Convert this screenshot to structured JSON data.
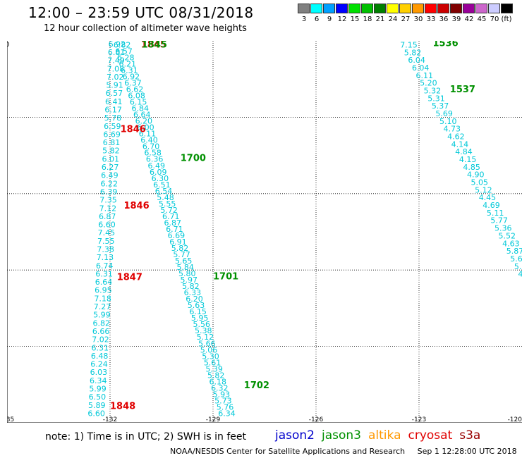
{
  "header": {
    "title": "12:00 – 23:59 UTC 08/31/2018",
    "subtitle": "12 hour collection of altimeter wave heights"
  },
  "colorbar": {
    "unit": "(ft)",
    "swatches": [
      {
        "color": "#808080",
        "label": "3"
      },
      {
        "color": "#00ffff",
        "label": "6"
      },
      {
        "color": "#00a0ff",
        "label": "9"
      },
      {
        "color": "#0000ff",
        "label": "12"
      },
      {
        "color": "#00e000",
        "label": "15"
      },
      {
        "color": "#00c000",
        "label": "18"
      },
      {
        "color": "#008000",
        "label": "21"
      },
      {
        "color": "#ffff00",
        "label": "24"
      },
      {
        "color": "#ffd000",
        "label": "27"
      },
      {
        "color": "#ff9900",
        "label": "30"
      },
      {
        "color": "#ff0000",
        "label": "33"
      },
      {
        "color": "#cc0000",
        "label": "36"
      },
      {
        "color": "#800000",
        "label": "39"
      },
      {
        "color": "#990099",
        "label": "42"
      },
      {
        "color": "#cc66cc",
        "label": "45"
      },
      {
        "color": "#ccccff",
        "label": "70"
      },
      {
        "color": "#000000",
        "label": ""
      }
    ]
  },
  "map": {
    "lon_range": [
      -135,
      -120
    ],
    "lat_range": [
      0,
      10
    ],
    "x_ticks": [
      "-135",
      "-132",
      "-129",
      "-126",
      "-123",
      "-120"
    ],
    "y_ticks": [
      "0",
      "2",
      "4",
      "6",
      "8",
      "10"
    ],
    "grid": "dotted",
    "value_color": "#00c8d8"
  },
  "tracks": [
    {
      "name": "track-a",
      "satellite": "jason3",
      "lon_start": -132.05,
      "lon_end": -132.65,
      "lat_start": 9.92,
      "lat_end": 0.25,
      "values": [
        "6.60",
        "5.89",
        "6.50",
        "5.99",
        "6.34",
        "6.03",
        "6.24",
        "6.48",
        "6.31",
        "7.02",
        "6.66",
        "6.82",
        "5.99",
        "7.27",
        "7.18",
        "6.95",
        "6.64",
        "6.31",
        "6.74",
        "7.13",
        "7.38",
        "7.55",
        "7.45",
        "6.60",
        "6.87",
        "7.12",
        "7.35",
        "6.39",
        "6.22",
        "6.49",
        "6.27",
        "6.01",
        "5.82",
        "6.81",
        "6.69",
        "6.59",
        "5.78",
        "6.17",
        "6.41",
        "6.57",
        "5.91",
        "7.02",
        "7.08",
        "7.49",
        "6.81",
        "6.92"
      ]
    },
    {
      "name": "track-b",
      "satellite": "jason3",
      "lon_start": -131.9,
      "lon_end": -128.85,
      "lat_start": 9.9,
      "lat_end": 0.25,
      "values": [
        "6.82",
        "6.57",
        "6.28",
        "6.21",
        "6.31",
        "6.92",
        "6.37",
        "6.62",
        "6.08",
        "6.15",
        "6.84",
        "6.64",
        "6.20",
        "6.00",
        "6.11",
        "6.40",
        "6.70",
        "6.58",
        "6.36",
        "6.49",
        "6.09",
        "6.30",
        "6.51",
        "6.54",
        "5.48",
        "5.55",
        "5.72",
        "6.71",
        "6.87",
        "6.71",
        "6.69",
        "6.91",
        "5.82",
        "5.77",
        "5.65",
        "5.84",
        "5.80",
        "5.97",
        "5.82",
        "6.33",
        "6.20",
        "5.63",
        "6.15",
        "5.95",
        "5.56",
        "5.38",
        "5.12",
        "5.66",
        "5.06",
        "5.30",
        "5.61",
        "5.39",
        "5.82",
        "6.18",
        "6.32",
        "5.93",
        "5.73",
        "5.76",
        "6.34"
      ]
    },
    {
      "name": "track-c",
      "satellite": "jason3",
      "lon_start": -123.55,
      "lon_end": -120.0,
      "lat_start": 9.9,
      "lat_end": 3.7,
      "values": [
        "7.15",
        "5.82",
        "6.04",
        "6.04",
        "6.11",
        "5.20",
        "5.32",
        "5.31",
        "5.37",
        "5.69",
        "5.10",
        "4.73",
        "4.62",
        "4.14",
        "4.84",
        "4.15",
        "4.85",
        "4.90",
        "5.05",
        "5.12",
        "4.45",
        "4.69",
        "5.11",
        "5.77",
        "5.36",
        "5.52",
        "4.63",
        "5.87",
        "5.6",
        "5.0",
        "4",
        "4"
      ]
    }
  ],
  "pass_labels": [
    {
      "text": "1845",
      "lon": -131.1,
      "lat": 9.92,
      "color": "#e00000"
    },
    {
      "text": "1845",
      "lon": -131.08,
      "lat": 9.92,
      "color": "#009000"
    },
    {
      "text": "1846",
      "lon": -131.7,
      "lat": 7.7,
      "color": "#e00000"
    },
    {
      "text": "1846",
      "lon": -131.6,
      "lat": 5.7,
      "color": "#e00000"
    },
    {
      "text": "1847",
      "lon": -131.8,
      "lat": 3.83,
      "color": "#e00000"
    },
    {
      "text": "1848",
      "lon": -132.0,
      "lat": 0.45,
      "color": "#e00000"
    },
    {
      "text": "1700",
      "lon": -129.95,
      "lat": 6.95,
      "color": "#009000"
    },
    {
      "text": "1701",
      "lon": -129.0,
      "lat": 3.85,
      "color": "#009000"
    },
    {
      "text": "1702",
      "lon": -128.1,
      "lat": 1.0,
      "color": "#009000"
    },
    {
      "text": "1536",
      "lon": -122.6,
      "lat": 9.95,
      "color": "#009000"
    },
    {
      "text": "1537",
      "lon": -122.1,
      "lat": 8.75,
      "color": "#009000"
    },
    {
      "text": "1",
      "lon": -119.85,
      "lat": 5.78,
      "color": "#009000"
    }
  ],
  "note": "note:  1) Time is in UTC;  2) SWH is in feet",
  "legend": [
    {
      "label": "jason2",
      "color": "#0000cc"
    },
    {
      "label": "jason3",
      "color": "#009000"
    },
    {
      "label": "altika",
      "color": "#ff9900"
    },
    {
      "label": "cryosat",
      "color": "#e00000"
    },
    {
      "label": "s3a",
      "color": "#990000"
    }
  ],
  "footer": {
    "credit": "NOAA/NESDIS Center for Satellite Applications and Research",
    "timestamp": "Sep  1 12:28:00 UTC 2018"
  }
}
